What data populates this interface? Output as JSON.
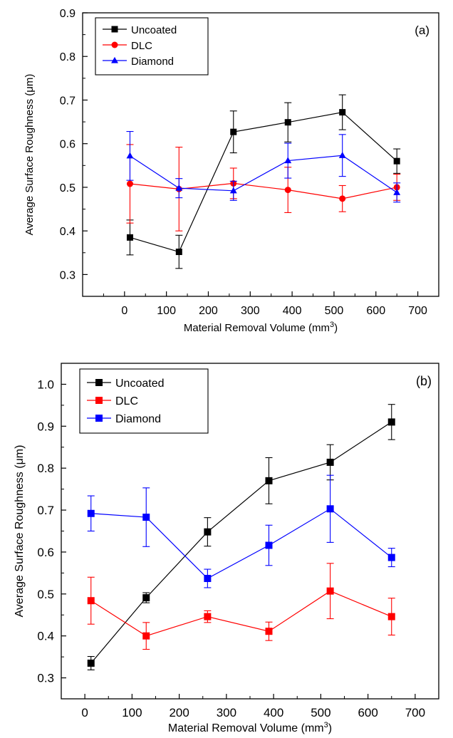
{
  "chart_data": [
    {
      "type": "line",
      "panel_label": "(a)",
      "xlabel": "Material Removal Volume (mm",
      "xlabel_sup": "3",
      "xlabel_end": ")",
      "ylabel": "Average Surface Roughness (μm)",
      "xlim": [
        -100,
        750
      ],
      "ylim": [
        0.25,
        0.9
      ],
      "xticks": [
        0,
        100,
        200,
        300,
        400,
        500,
        600,
        700
      ],
      "yticks": [
        0.3,
        0.4,
        0.5,
        0.6,
        0.7,
        0.8,
        0.9
      ],
      "x_tick_labels": [
        "0",
        "100",
        "200",
        "300",
        "400",
        "500",
        "600",
        "700"
      ],
      "y_tick_labels": [
        "0.3",
        "0.4",
        "0.5",
        "0.6",
        "0.7",
        "0.8",
        "0.9"
      ],
      "legend_position": "top-left",
      "grid": false,
      "x": [
        13,
        130,
        260,
        390,
        520,
        650
      ],
      "series": [
        {
          "name": "Uncoated",
          "color": "#000000",
          "marker": "square",
          "values": [
            0.385,
            0.352,
            0.627,
            0.649,
            0.672,
            0.56
          ],
          "errors": [
            0.04,
            0.038,
            0.048,
            0.045,
            0.04,
            0.028
          ]
        },
        {
          "name": "DLC",
          "color": "#ff0000",
          "marker": "circle",
          "values": [
            0.508,
            0.496,
            0.509,
            0.494,
            0.474,
            0.5
          ],
          "errors": [
            0.09,
            0.096,
            0.035,
            0.052,
            0.03,
            0.03
          ]
        },
        {
          "name": "Diamond",
          "color": "#0000ff",
          "marker": "triangle",
          "values": [
            0.572,
            0.498,
            0.492,
            0.561,
            0.573,
            0.488
          ],
          "errors": [
            0.056,
            0.022,
            0.022,
            0.04,
            0.048,
            0.022
          ]
        }
      ]
    },
    {
      "type": "line",
      "panel_label": "(b)",
      "xlabel": "Material Removal Volume (mm",
      "xlabel_sup": "3",
      "xlabel_end": ")",
      "ylabel": "Average Surface Roughness (μm)",
      "xlim": [
        -50,
        750
      ],
      "ylim": [
        0.25,
        1.05
      ],
      "xticks": [
        0,
        100,
        200,
        300,
        400,
        500,
        600,
        700
      ],
      "yticks": [
        0.3,
        0.4,
        0.5,
        0.6,
        0.7,
        0.8,
        0.9,
        1.0
      ],
      "x_tick_labels": [
        "0",
        "100",
        "200",
        "300",
        "400",
        "500",
        "600",
        "700"
      ],
      "y_tick_labels": [
        "0.3",
        "0.4",
        "0.5",
        "0.6",
        "0.7",
        "0.8",
        "0.9",
        "1.0"
      ],
      "legend_position": "top-left",
      "grid": false,
      "x": [
        13,
        130,
        260,
        390,
        520,
        650
      ],
      "series": [
        {
          "name": "Uncoated",
          "color": "#000000",
          "marker": "square",
          "values": [
            0.335,
            0.491,
            0.648,
            0.77,
            0.814,
            0.91
          ],
          "errors": [
            0.016,
            0.012,
            0.034,
            0.055,
            0.042,
            0.042
          ]
        },
        {
          "name": "DLC",
          "color": "#ff0000",
          "marker": "square",
          "values": [
            0.484,
            0.4,
            0.446,
            0.411,
            0.507,
            0.446
          ],
          "errors": [
            0.056,
            0.032,
            0.014,
            0.022,
            0.066,
            0.044
          ]
        },
        {
          "name": "Diamond",
          "color": "#0000ff",
          "marker": "square",
          "values": [
            0.692,
            0.683,
            0.537,
            0.616,
            0.703,
            0.587
          ],
          "errors": [
            0.042,
            0.07,
            0.022,
            0.048,
            0.08,
            0.022
          ]
        }
      ]
    }
  ]
}
